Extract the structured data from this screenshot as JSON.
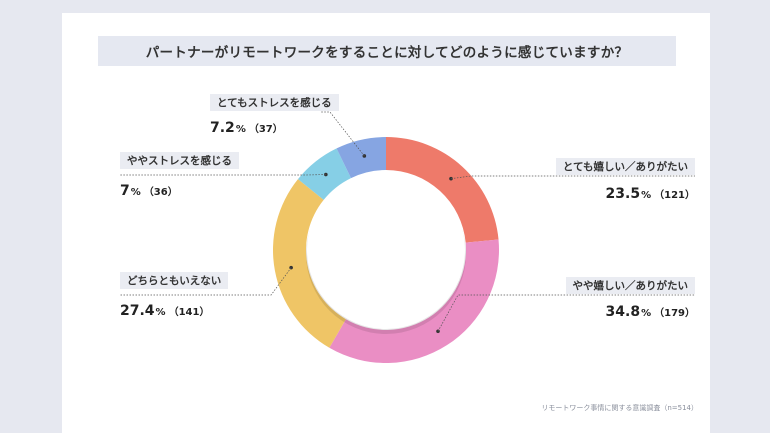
{
  "title": "パートナーがリモートワークをすることに対してどのように感じていますか？",
  "source": "リモートワーク事情に関する意識調査（n=514）",
  "colors": {
    "background": "#e6e8f0",
    "title_bar": "#e5e8f1",
    "label_box": "#eaecf2",
    "guide_line": "#555555"
  },
  "chart_data": {
    "type": "pie",
    "donut": true,
    "n": 514,
    "slices": [
      {
        "label": "とても嬉しい／ありがたい",
        "percent": 23.5,
        "percent_text": "23.5",
        "count": 121,
        "count_text": "（121）",
        "color": "#ee7a6a"
      },
      {
        "label": "やや嬉しい／ありがたい",
        "percent": 34.8,
        "percent_text": "34.8",
        "count": 179,
        "count_text": "（179）",
        "color": "#ea8ec4"
      },
      {
        "label": "どちらともいえない",
        "percent": 27.4,
        "percent_text": "27.4",
        "count": 141,
        "count_text": "（141）",
        "color": "#efc566"
      },
      {
        "label": "ややストレスを感じる",
        "percent": 7,
        "percent_text": "7",
        "count": 36,
        "count_text": "（36）",
        "color": "#86cfe6"
      },
      {
        "label": "とてもストレスを感じる",
        "percent": 7.2,
        "percent_text": "7.2",
        "count": 37,
        "count_text": "（37）",
        "color": "#86a5e2"
      }
    ]
  }
}
